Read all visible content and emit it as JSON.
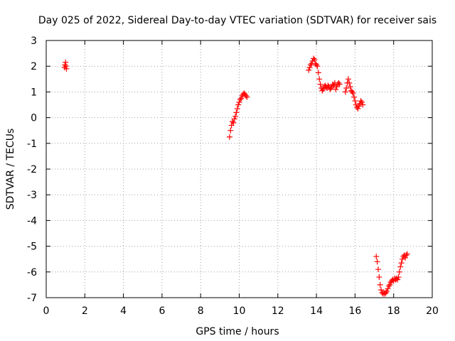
{
  "chart_data": {
    "type": "scatter",
    "title": "Day 025 of 2022, Sidereal Day-to-day VTEC variation (SDTVAR) for receiver sais",
    "xlabel": "GPS time / hours",
    "ylabel": "SDTVAR / TECUs",
    "xlim": [
      0,
      20
    ],
    "ylim": [
      -7,
      3
    ],
    "xticks": [
      "0",
      "2",
      "4",
      "6",
      "8",
      "10",
      "12",
      "14",
      "16",
      "18",
      "20"
    ],
    "yticks": [
      "3",
      "2",
      "1",
      "0",
      "-1",
      "-2",
      "-3",
      "-4",
      "-5",
      "-6",
      "-7"
    ],
    "grid": true,
    "marker": "plus",
    "color": "#ff0000",
    "series": [
      {
        "name": "SDTVAR",
        "x": [
          0.95,
          0.97,
          1.0,
          1.02,
          1.05,
          9.5,
          9.55,
          9.6,
          9.65,
          9.7,
          9.75,
          9.8,
          9.85,
          9.9,
          9.95,
          10.0,
          10.05,
          10.1,
          10.15,
          10.2,
          10.25,
          10.3,
          10.35,
          10.4,
          13.6,
          13.65,
          13.7,
          13.75,
          13.8,
          13.85,
          13.9,
          13.95,
          14.0,
          14.05,
          14.1,
          14.15,
          14.2,
          14.25,
          14.3,
          14.35,
          14.4,
          14.45,
          14.5,
          14.55,
          14.6,
          14.65,
          14.7,
          14.75,
          14.8,
          14.85,
          14.9,
          14.95,
          15.0,
          15.05,
          15.1,
          15.15,
          15.2,
          15.5,
          15.55,
          15.6,
          15.65,
          15.7,
          15.75,
          15.8,
          15.85,
          15.9,
          15.95,
          16.0,
          16.05,
          16.1,
          16.15,
          16.2,
          16.25,
          16.3,
          16.35,
          16.4,
          17.1,
          17.15,
          17.2,
          17.25,
          17.3,
          17.35,
          17.4,
          17.45,
          17.5,
          17.55,
          17.6,
          17.65,
          17.7,
          17.75,
          17.8,
          17.85,
          17.9,
          17.95,
          18.0,
          18.05,
          18.1,
          18.15,
          18.2,
          18.25,
          18.3,
          18.35,
          18.4,
          18.45,
          18.5,
          18.55,
          18.6,
          18.65,
          18.7
        ],
        "y": [
          1.95,
          2.05,
          2.15,
          2.0,
          1.9,
          -0.75,
          -0.5,
          -0.3,
          -0.15,
          -0.2,
          -0.05,
          0.05,
          0.2,
          0.35,
          0.5,
          0.6,
          0.7,
          0.75,
          0.85,
          0.9,
          0.95,
          0.9,
          0.85,
          0.8,
          1.85,
          1.95,
          2.05,
          2.1,
          2.2,
          2.3,
          2.25,
          2.1,
          2.05,
          2.0,
          1.75,
          1.5,
          1.3,
          1.15,
          1.05,
          1.1,
          1.2,
          1.25,
          1.2,
          1.15,
          1.25,
          1.2,
          1.1,
          1.15,
          1.2,
          1.3,
          1.25,
          1.35,
          1.1,
          1.2,
          1.3,
          1.35,
          1.3,
          1.0,
          1.15,
          1.35,
          1.5,
          1.35,
          1.2,
          1.05,
          1.0,
          0.95,
          0.8,
          0.65,
          0.5,
          0.4,
          0.35,
          0.45,
          0.55,
          0.65,
          0.6,
          0.5,
          -5.4,
          -5.6,
          -5.9,
          -6.2,
          -6.5,
          -6.7,
          -6.8,
          -6.85,
          -6.8,
          -6.85,
          -6.8,
          -6.75,
          -6.65,
          -6.55,
          -6.5,
          -6.4,
          -6.35,
          -6.3,
          -6.35,
          -6.25,
          -6.3,
          -6.25,
          -6.3,
          -6.2,
          -6.0,
          -5.8,
          -5.65,
          -5.5,
          -5.4,
          -5.35,
          -5.45,
          -5.35,
          -5.3
        ]
      }
    ]
  }
}
